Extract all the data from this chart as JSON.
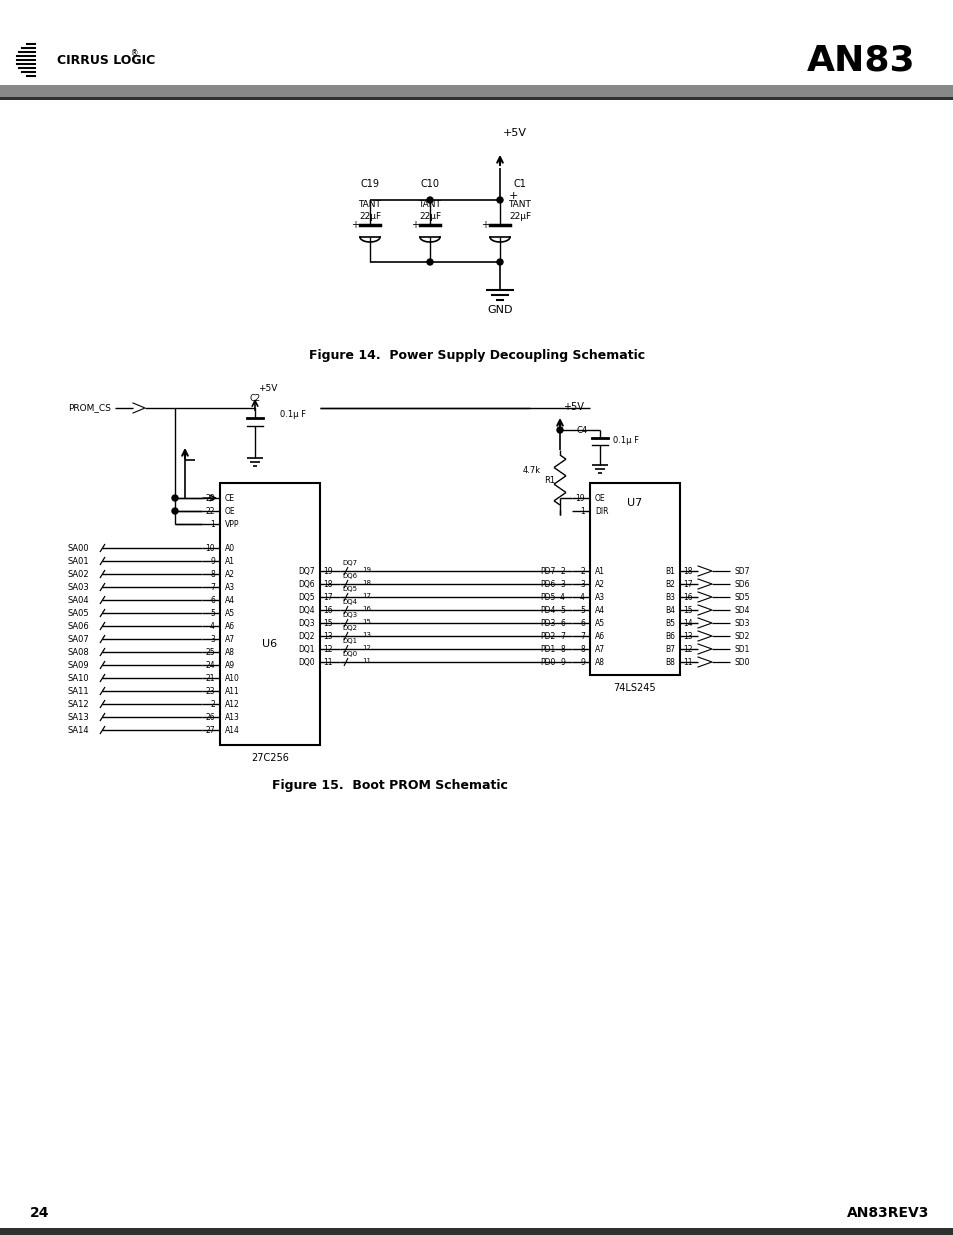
{
  "title_an83": "AN83",
  "page_num": "24",
  "rev": "AN83REV3",
  "fig14_caption": "Figure 14.  Power Supply Decoupling Schematic",
  "fig15_caption": "Figure 15.  Boot PROM Schematic",
  "bg_color": "#ffffff",
  "header_bar_color": "#888888",
  "footer_bar_color": "#303030",
  "u6_left_pins": [
    [
      20,
      "CE",
      498
    ],
    [
      22,
      "OE",
      511
    ],
    [
      1,
      "VPP",
      524
    ],
    [
      10,
      "A0",
      548
    ],
    [
      9,
      "A1",
      561
    ],
    [
      8,
      "A2",
      574
    ],
    [
      7,
      "A3",
      587
    ],
    [
      6,
      "A4",
      600
    ],
    [
      5,
      "A5",
      613
    ],
    [
      4,
      "A6",
      626
    ],
    [
      3,
      "A7",
      639
    ],
    [
      25,
      "A8",
      652
    ],
    [
      24,
      "A9",
      665
    ],
    [
      21,
      "A10",
      678
    ],
    [
      23,
      "A11",
      691
    ],
    [
      2,
      "A12",
      704
    ],
    [
      26,
      "A13",
      717
    ],
    [
      27,
      "A14",
      730
    ]
  ],
  "u6_right_pins": [
    [
      19,
      "DQ7",
      571
    ],
    [
      18,
      "DQ6",
      584
    ],
    [
      17,
      "DQ5",
      597
    ],
    [
      16,
      "DQ4",
      610
    ],
    [
      15,
      "DQ3",
      623
    ],
    [
      13,
      "DQ2",
      636
    ],
    [
      12,
      "DQ1",
      649
    ],
    [
      11,
      "DQ0",
      662
    ]
  ],
  "u7_left_pins": [
    [
      19,
      "OE",
      498
    ],
    [
      1,
      "DIR",
      511
    ],
    [
      2,
      "A1",
      571
    ],
    [
      3,
      "A2",
      584
    ],
    [
      4,
      "A3",
      597
    ],
    [
      5,
      "A4",
      610
    ],
    [
      6,
      "A5",
      623
    ],
    [
      7,
      "A6",
      636
    ],
    [
      8,
      "A7",
      649
    ],
    [
      9,
      "A8",
      662
    ]
  ],
  "u7_right_pins": [
    [
      18,
      "B1",
      571
    ],
    [
      17,
      "B2",
      584
    ],
    [
      16,
      "B3",
      597
    ],
    [
      15,
      "B4",
      610
    ],
    [
      14,
      "B5",
      623
    ],
    [
      13,
      "B6",
      636
    ],
    [
      12,
      "B7",
      649
    ],
    [
      11,
      "B8",
      662
    ]
  ],
  "sa_labels": [
    "SA00",
    "SA01",
    "SA02",
    "SA03",
    "SA04",
    "SA05",
    "SA06",
    "SA07",
    "SA08",
    "SA09",
    "SA10",
    "SA11",
    "SA12",
    "SA13",
    "SA14"
  ],
  "pd_labels": [
    "PD7",
    "PD6",
    "PD5",
    "PD4",
    "PD3",
    "PD2",
    "PD1",
    "PD0"
  ],
  "pd_nums": [
    2,
    3,
    4,
    5,
    6,
    7,
    8,
    9
  ],
  "sd_labels": [
    "SD7",
    "SD6",
    "SD5",
    "SD4",
    "SD3",
    "SD2",
    "SD1",
    "SD0"
  ]
}
